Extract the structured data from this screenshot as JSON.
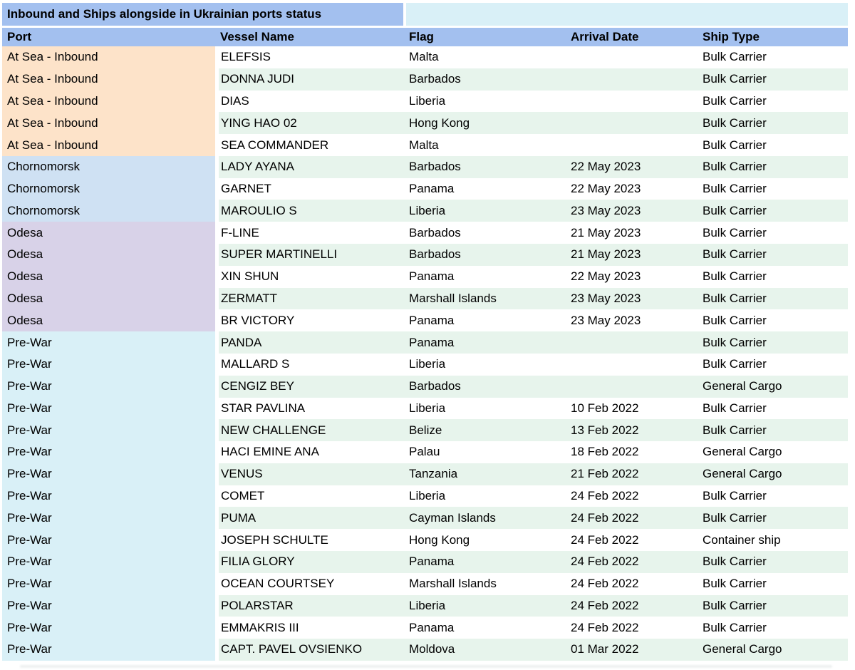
{
  "table": {
    "title": "Inbound and Ships alongside in Ukrainian ports status",
    "columns": [
      "Port",
      "Vessel Name",
      "Flag",
      "Arrival Date",
      "Ship Type"
    ],
    "colors": {
      "header_blue": "#a3c0ef",
      "title_right_cyan": "#d9f0f7",
      "band_white": "#ffffff",
      "band_green": "#e7f4ec",
      "text": "#000000"
    },
    "port_colors": {
      "At Sea - Inbound": "#fde3c9",
      "Chornomorsk": "#cfe1f3",
      "Odesa": "#d8d2e8",
      "Pre-War": "#d9f0f7"
    },
    "rows": [
      {
        "port": "At Sea - Inbound",
        "vessel": "ELEFSIS",
        "flag": "Malta",
        "arrival": "",
        "type": "Bulk Carrier"
      },
      {
        "port": "At Sea - Inbound",
        "vessel": "DONNA JUDI",
        "flag": "Barbados",
        "arrival": "",
        "type": "Bulk Carrier"
      },
      {
        "port": "At Sea - Inbound",
        "vessel": "DIAS",
        "flag": "Liberia",
        "arrival": "",
        "type": "Bulk Carrier"
      },
      {
        "port": "At Sea - Inbound",
        "vessel": "YING HAO 02",
        "flag": "Hong Kong",
        "arrival": "",
        "type": "Bulk Carrier"
      },
      {
        "port": "At Sea - Inbound",
        "vessel": "SEA COMMANDER",
        "flag": "Malta",
        "arrival": "",
        "type": "Bulk Carrier"
      },
      {
        "port": "Chornomorsk",
        "vessel": "LADY AYANA",
        "flag": "Barbados",
        "arrival": "22 May 2023",
        "type": "Bulk Carrier"
      },
      {
        "port": "Chornomorsk",
        "vessel": "GARNET",
        "flag": "Panama",
        "arrival": "22 May 2023",
        "type": "Bulk Carrier"
      },
      {
        "port": "Chornomorsk",
        "vessel": "MAROULIO S",
        "flag": "Liberia",
        "arrival": "23 May 2023",
        "type": "Bulk Carrier"
      },
      {
        "port": "Odesa",
        "vessel": "F-LINE",
        "flag": "Barbados",
        "arrival": "21 May 2023",
        "type": "Bulk Carrier"
      },
      {
        "port": "Odesa",
        "vessel": "SUPER MARTINELLI",
        "flag": "Barbados",
        "arrival": "21 May 2023",
        "type": "Bulk Carrier"
      },
      {
        "port": "Odesa",
        "vessel": "XIN SHUN",
        "flag": "Panama",
        "arrival": "22 May 2023",
        "type": "Bulk Carrier"
      },
      {
        "port": "Odesa",
        "vessel": "ZERMATT",
        "flag": "Marshall Islands",
        "arrival": "23 May 2023",
        "type": "Bulk Carrier"
      },
      {
        "port": "Odesa",
        "vessel": "BR VICTORY",
        "flag": "Panama",
        "arrival": "23 May 2023",
        "type": "Bulk Carrier"
      },
      {
        "port": "Pre-War",
        "vessel": "PANDA",
        "flag": "Panama",
        "arrival": "",
        "type": "Bulk Carrier"
      },
      {
        "port": "Pre-War",
        "vessel": "MALLARD S",
        "flag": "Liberia",
        "arrival": "",
        "type": "Bulk Carrier"
      },
      {
        "port": "Pre-War",
        "vessel": "CENGIZ BEY",
        "flag": "Barbados",
        "arrival": "",
        "type": "General Cargo"
      },
      {
        "port": "Pre-War",
        "vessel": "STAR PAVLINA",
        "flag": "Liberia",
        "arrival": "10 Feb 2022",
        "type": "Bulk Carrier"
      },
      {
        "port": "Pre-War",
        "vessel": "NEW CHALLENGE",
        "flag": "Belize",
        "arrival": "13 Feb 2022",
        "type": "Bulk Carrier"
      },
      {
        "port": "Pre-War",
        "vessel": "HACI EMINE ANA",
        "flag": "Palau",
        "arrival": "18 Feb 2022",
        "type": "General Cargo"
      },
      {
        "port": "Pre-War",
        "vessel": "VENUS",
        "flag": "Tanzania",
        "arrival": "21 Feb 2022",
        "type": "General Cargo"
      },
      {
        "port": "Pre-War",
        "vessel": "COMET",
        "flag": "Liberia",
        "arrival": "24 Feb 2022",
        "type": "Bulk Carrier"
      },
      {
        "port": "Pre-War",
        "vessel": "PUMA",
        "flag": "Cayman Islands",
        "arrival": "24 Feb 2022",
        "type": "Bulk Carrier"
      },
      {
        "port": "Pre-War",
        "vessel": "JOSEPH SCHULTE",
        "flag": "Hong Kong",
        "arrival": "24 Feb 2022",
        "type": "Container ship"
      },
      {
        "port": "Pre-War",
        "vessel": "FILIA GLORY",
        "flag": "Panama",
        "arrival": "24 Feb 2022",
        "type": "Bulk Carrier"
      },
      {
        "port": "Pre-War",
        "vessel": "OCEAN COURTSEY",
        "flag": "Marshall Islands",
        "arrival": "24 Feb 2022",
        "type": "Bulk Carrier"
      },
      {
        "port": "Pre-War",
        "vessel": "POLARSTAR",
        "flag": "Liberia",
        "arrival": "24 Feb 2022",
        "type": "Bulk Carrier"
      },
      {
        "port": "Pre-War",
        "vessel": "EMMAKRIS III",
        "flag": "Panama",
        "arrival": "24 Feb 2022",
        "type": "Bulk Carrier"
      },
      {
        "port": "Pre-War",
        "vessel": "CAPT. PAVEL OVSIENKO",
        "flag": "Moldova",
        "arrival": "01 Mar 2022",
        "type": "General Cargo"
      }
    ]
  }
}
